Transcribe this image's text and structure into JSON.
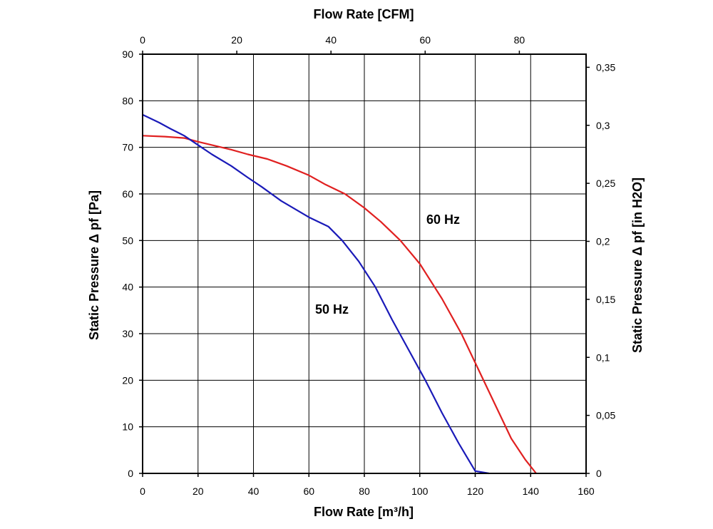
{
  "chart_data": {
    "type": "line",
    "x_bottom": {
      "label": "Flow Rate [m³/h]",
      "range": [
        0,
        160
      ],
      "ticks": [
        0,
        20,
        40,
        60,
        80,
        100,
        120,
        140,
        160
      ]
    },
    "x_top": {
      "label": "Flow Rate [CFM]",
      "range": [
        0,
        94.17
      ],
      "ticks": [
        "0",
        "20",
        "40",
        "60",
        "80"
      ]
    },
    "y_left": {
      "label": "Static Pressure Δ pf [Pa]",
      "range": [
        0,
        90
      ],
      "ticks": [
        0,
        10,
        20,
        30,
        40,
        50,
        60,
        70,
        80,
        90
      ]
    },
    "y_right": {
      "label": "Static Pressure Δ pf [in H2O]",
      "range": [
        0,
        0.3613
      ],
      "ticks": [
        "0",
        "0,05",
        "0,1",
        "0,15",
        "0,2",
        "0,25",
        "0,3",
        "0,35"
      ]
    },
    "grid": true,
    "series": [
      {
        "name": "60 Hz",
        "color": "#e02020",
        "x": [
          0,
          8,
          15,
          20,
          25,
          32,
          38,
          45,
          52,
          60,
          66,
          73,
          80,
          86,
          93,
          100,
          108,
          115,
          121,
          127,
          133,
          138,
          142
        ],
        "y": [
          72.5,
          72.3,
          72.0,
          71.2,
          70.5,
          69.5,
          68.5,
          67.5,
          66.0,
          64.0,
          62.0,
          60.0,
          57.0,
          54.0,
          50.0,
          45.0,
          37.5,
          30.0,
          22.5,
          15.0,
          7.5,
          3.0,
          0
        ]
      },
      {
        "name": "50 Hz",
        "color": "#1a1ab8",
        "x": [
          0,
          6,
          10,
          15,
          20,
          25,
          32,
          38,
          43,
          50,
          60,
          67,
          72,
          78,
          84,
          90,
          96,
          102,
          108,
          114,
          120,
          125
        ],
        "y": [
          77.0,
          75.3,
          74.0,
          72.5,
          70.5,
          68.5,
          66.0,
          63.5,
          61.5,
          58.5,
          55.0,
          53.0,
          50.0,
          45.5,
          40.0,
          33.0,
          26.5,
          20.0,
          13.0,
          6.5,
          0.5,
          0
        ]
      }
    ],
    "annotations": [
      "60 Hz",
      "50 Hz"
    ]
  }
}
